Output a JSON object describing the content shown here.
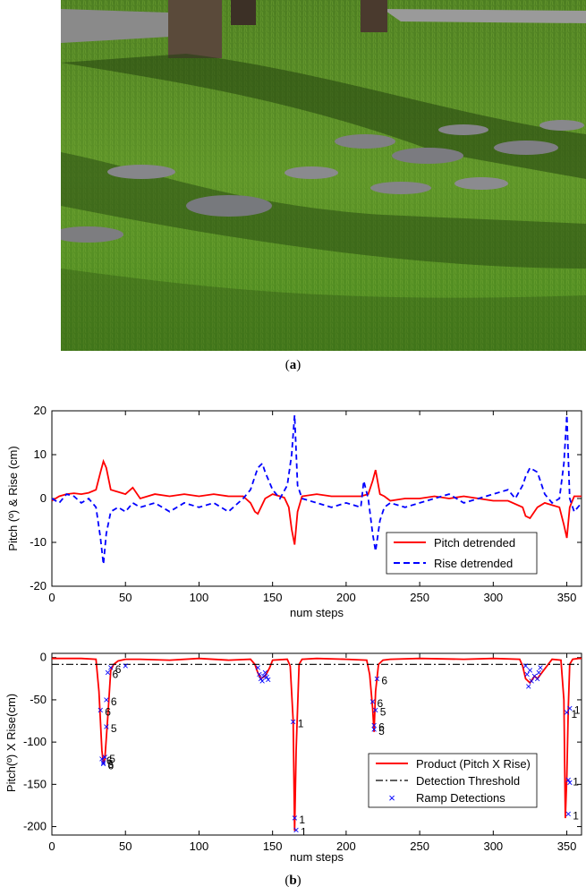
{
  "panel_a": {
    "caption_letter": "a",
    "image_description_note": ""
  },
  "panel_b": {
    "caption_letter": "b"
  },
  "colors": {
    "red": "#ff0000",
    "blue": "#0000ff",
    "black": "#000000",
    "grass_dark": "#2f5a14",
    "grass_light": "#6fa52c"
  },
  "chart_data": [
    {
      "type": "line",
      "xlabel": "num steps",
      "ylabel": "Pitch (º) & Rise (cm)",
      "xlim": [
        0,
        360
      ],
      "ylim": [
        -20,
        20
      ],
      "xticks": [
        0,
        50,
        100,
        150,
        200,
        250,
        300,
        350
      ],
      "yticks": [
        -20,
        -10,
        0,
        10,
        20
      ],
      "legend_position": "lower-right",
      "series": [
        {
          "name": "Pitch detrended",
          "color": "#ff0000",
          "style": "solid",
          "x": [
            0,
            5,
            10,
            15,
            20,
            25,
            30,
            33,
            35,
            37,
            40,
            45,
            50,
            55,
            60,
            70,
            80,
            90,
            100,
            110,
            120,
            130,
            135,
            138,
            140,
            145,
            150,
            155,
            158,
            161,
            163,
            165,
            167,
            170,
            180,
            190,
            200,
            210,
            215,
            218,
            220,
            223,
            226,
            230,
            240,
            250,
            260,
            270,
            280,
            290,
            300,
            310,
            320,
            322,
            325,
            330,
            335,
            340,
            345,
            348,
            350,
            352,
            355,
            360
          ],
          "values": [
            -0.5,
            0.5,
            1,
            1.2,
            1,
            1.3,
            2,
            6,
            8.5,
            7,
            2,
            1.5,
            1,
            2.5,
            0,
            1,
            0.5,
            1,
            0.5,
            1,
            0.5,
            0.5,
            -1,
            -3,
            -3.5,
            0,
            1,
            0.5,
            0.2,
            -2,
            -7,
            -10.5,
            -3,
            0.5,
            1,
            0.5,
            0.5,
            0.5,
            1,
            4,
            6.5,
            1,
            0.5,
            -0.5,
            0,
            0,
            0.5,
            0,
            0.5,
            0,
            -0.5,
            -0.5,
            -2,
            -4,
            -4.5,
            -2,
            -1,
            -1.5,
            -2,
            -6,
            -9,
            -2,
            0.5,
            0.5
          ]
        },
        {
          "name": "Rise detrended",
          "color": "#0000ff",
          "style": "dashed",
          "x": [
            0,
            5,
            10,
            15,
            20,
            25,
            30,
            33,
            35,
            37,
            40,
            45,
            50,
            55,
            60,
            70,
            80,
            90,
            100,
            110,
            120,
            130,
            135,
            138,
            140,
            143,
            145,
            150,
            155,
            160,
            163,
            165,
            167,
            170,
            180,
            190,
            200,
            210,
            212,
            215,
            218,
            220,
            223,
            226,
            230,
            240,
            250,
            260,
            270,
            280,
            290,
            300,
            310,
            315,
            320,
            322,
            325,
            330,
            335,
            340,
            345,
            348,
            350,
            352,
            355,
            360
          ],
          "values": [
            0,
            -1,
            1,
            0.5,
            -1,
            0,
            -2,
            -9,
            -15,
            -8,
            -3,
            -2,
            -3,
            -1,
            -2,
            -1,
            -3,
            -1,
            -2,
            -1,
            -3,
            0,
            2,
            5,
            7,
            8,
            6,
            2,
            0,
            3,
            10,
            19,
            3,
            0,
            -1,
            -2,
            -1,
            -2,
            4,
            0,
            -8,
            -12,
            -5,
            -2,
            -1,
            -2,
            -1,
            0,
            1,
            -1,
            0,
            1,
            2,
            0,
            3,
            5,
            7,
            6,
            1,
            -1,
            0,
            8,
            19,
            0,
            -3,
            -1
          ]
        }
      ]
    },
    {
      "type": "line",
      "xlabel": "num steps",
      "ylabel": "Pitch(º) X Rise(cm)",
      "xlim": [
        0,
        360
      ],
      "ylim": [
        -210,
        5
      ],
      "xticks": [
        0,
        50,
        100,
        150,
        200,
        250,
        300,
        350
      ],
      "yticks": [
        -200,
        -150,
        -100,
        -50,
        0
      ],
      "legend_position": "lower-right",
      "threshold": -8,
      "series": [
        {
          "name": "Product (Pitch X Rise)",
          "color": "#ff0000",
          "style": "solid",
          "x": [
            0,
            10,
            20,
            30,
            32,
            34,
            35,
            36,
            38,
            40,
            42,
            45,
            50,
            60,
            80,
            100,
            120,
            135,
            138,
            140,
            142,
            145,
            148,
            150,
            160,
            162,
            164,
            165,
            166,
            168,
            170,
            180,
            200,
            214,
            216,
            218,
            219,
            220,
            222,
            225,
            230,
            250,
            280,
            300,
            318,
            320,
            322,
            325,
            328,
            330,
            333,
            340,
            346,
            348,
            349,
            350,
            351,
            352,
            354,
            358,
            360
          ],
          "values": [
            -1,
            -1,
            -1,
            -2,
            -40,
            -110,
            -126,
            -120,
            -70,
            -15,
            -8,
            -4,
            -2,
            -2,
            -3,
            -1,
            -3,
            -2,
            -8,
            -18,
            -25,
            -22,
            -12,
            -3,
            -2,
            -10,
            -75,
            -205,
            -110,
            -8,
            -2,
            -1,
            -2,
            -3,
            -20,
            -60,
            -88,
            -40,
            -8,
            -3,
            -2,
            -1,
            -2,
            -1,
            -2,
            -10,
            -25,
            -30,
            -22,
            -25,
            -18,
            -2,
            -3,
            -50,
            -190,
            -140,
            -60,
            -8,
            -2,
            -1,
            -1
          ]
        },
        {
          "name": "Detection Threshold",
          "color": "#000000",
          "style": "dashdot",
          "x": [
            0,
            360
          ],
          "values": [
            -8,
            -8
          ]
        },
        {
          "name": "Ramp Detections",
          "color": "#0000ff",
          "style": "marker-x",
          "x": [
            33,
            34,
            35,
            35,
            36,
            37,
            37,
            38,
            40,
            50,
            140,
            141,
            142,
            143,
            144,
            145,
            146,
            147,
            164,
            165,
            166,
            218,
            219,
            219,
            220,
            221,
            322,
            323,
            324,
            325,
            326,
            328,
            330,
            331,
            332,
            350,
            351,
            351,
            352,
            352
          ],
          "values": [
            -62,
            -120,
            -126,
            -124,
            -118,
            -82,
            -50,
            -18,
            -12,
            -10,
            -12,
            -20,
            -25,
            -28,
            -22,
            -18,
            -23,
            -26,
            -76,
            -190,
            -204,
            -52,
            -80,
            -85,
            -62,
            -25,
            -10,
            -20,
            -34,
            -15,
            -28,
            -22,
            -25,
            -18,
            -12,
            -65,
            -145,
            -185,
            -60,
            -148
          ],
          "labels": [
            "6",
            "6",
            "6",
            "5",
            "5",
            "5",
            "6",
            "6",
            "6",
            "",
            "",
            "",
            "",
            "",
            "",
            "",
            "",
            "",
            "1",
            "1",
            "1",
            "6",
            "6",
            "5",
            "5",
            "6",
            "",
            "",
            "",
            "",
            "",
            "",
            "",
            "",
            "",
            "1",
            "1",
            "1",
            "1",
            ""
          ]
        }
      ]
    }
  ]
}
